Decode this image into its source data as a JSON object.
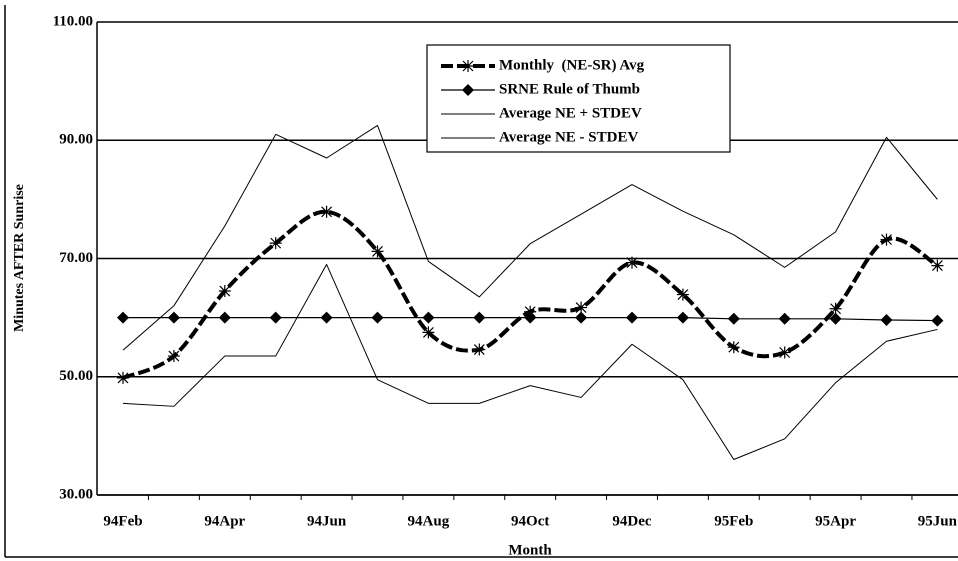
{
  "chart_data": {
    "type": "line",
    "x_label": "Month",
    "y_label": "Minutes AFTER Sunrise",
    "categories": [
      "94Feb",
      null,
      "94Apr",
      null,
      "94Jun",
      null,
      "94Aug",
      null,
      "94Oct",
      null,
      "94Dec",
      null,
      "95Feb",
      null,
      "95Apr",
      null,
      "95Jun"
    ],
    "ylim": [
      30,
      110
    ],
    "yticks": [
      {
        "value": 30,
        "label": "30.00"
      },
      {
        "value": 50,
        "label": "50.00"
      },
      {
        "value": 70,
        "label": "70.00"
      },
      {
        "value": 90,
        "label": "90.00"
      },
      {
        "value": 110,
        "label": "110.00"
      }
    ],
    "grid": true,
    "legend": "top",
    "series": [
      {
        "name": "Monthly  (NE-SR) Avg",
        "color": "#000000",
        "width": 4,
        "dash": true,
        "smooth": true,
        "marker": "asterisk",
        "values": [
          49.8,
          53.5,
          64.5,
          72.6,
          77.9,
          71.2,
          57.5,
          54.6,
          61,
          61.7,
          69.3,
          63.9,
          55,
          54.1,
          61.5,
          73.2,
          68.8
        ]
      },
      {
        "name": "SRNE Rule of Thumb",
        "color": "#000000",
        "width": 1.2,
        "dash": false,
        "smooth": false,
        "marker": "diamond",
        "values": [
          60,
          60,
          60,
          60,
          60,
          60,
          60,
          60,
          60,
          60,
          60,
          60,
          59.8,
          59.8,
          59.8,
          59.6,
          59.5
        ]
      },
      {
        "name": "Average NE + STDEV",
        "color": "#000000",
        "width": 1,
        "dash": false,
        "smooth": false,
        "marker": "none",
        "values": [
          54.5,
          62,
          75.5,
          91,
          87,
          92.5,
          69.5,
          63.5,
          72.5,
          77.5,
          82.5,
          78,
          74,
          68.5,
          74.5,
          90.5,
          80
        ]
      },
      {
        "name": "Average NE - STDEV",
        "color": "#000000",
        "width": 1,
        "dash": false,
        "smooth": false,
        "marker": "none",
        "values": [
          45.5,
          45,
          53.5,
          53.5,
          69,
          49.5,
          45.5,
          45.5,
          48.5,
          46.5,
          55.5,
          49.5,
          36,
          39.5,
          49,
          56,
          58
        ]
      }
    ]
  }
}
